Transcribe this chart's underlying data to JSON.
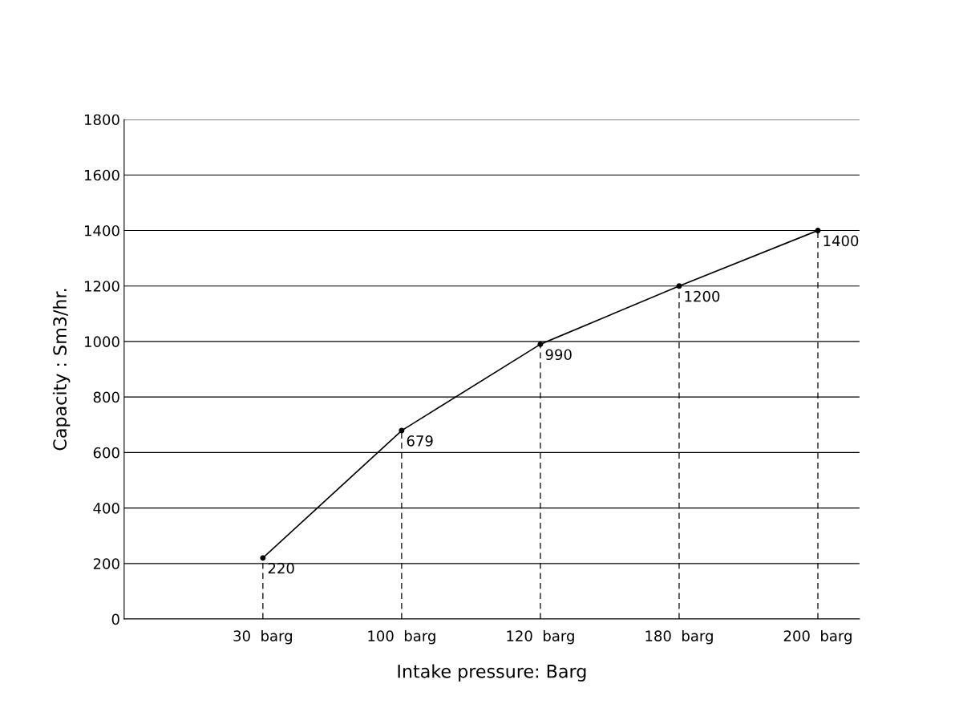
{
  "chart_data": {
    "type": "line",
    "xlabel": "Intake pressure: Barg",
    "ylabel": "Capacity : Sm3/hr.",
    "categories": [
      "30  barg",
      "100  barg",
      "120  barg",
      "180  barg",
      "200  barg"
    ],
    "series": [
      {
        "color": "#000000",
        "values": [
          220,
          679,
          990,
          1200,
          1400
        ]
      }
    ],
    "ylim": [
      0,
      1800
    ],
    "yticks": [
      0,
      200,
      400,
      600,
      800,
      1000,
      1200,
      1400,
      1600,
      1800
    ],
    "grid": "y",
    "marker": "circle",
    "data_labels": true,
    "legend": false
  }
}
